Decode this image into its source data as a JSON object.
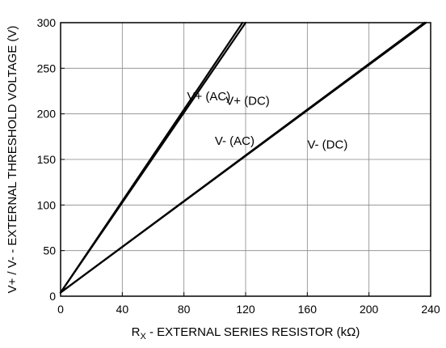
{
  "chart_data": {
    "type": "line",
    "xlabel": {
      "main": "R",
      "sub": "X",
      "rest": " - EXTERNAL SERIES RESISTOR (kΩ)"
    },
    "ylabel": "V+ / V- - EXTERNAL THRESHOLD VOLTAGE (V)",
    "xlim": [
      0,
      240
    ],
    "ylim": [
      0,
      300
    ],
    "xticks": [
      0,
      40,
      80,
      120,
      160,
      200,
      240
    ],
    "yticks": [
      0,
      50,
      100,
      150,
      200,
      250,
      300
    ],
    "grid": true,
    "series": [
      {
        "name": "V+ (AC)",
        "x": [
          0,
          118
        ],
        "y": [
          4,
          300
        ]
      },
      {
        "name": "V+ (DC)",
        "x": [
          0,
          120
        ],
        "y": [
          4,
          300
        ]
      },
      {
        "name": "V- (AC)",
        "x": [
          0,
          236
        ],
        "y": [
          4,
          300
        ]
      },
      {
        "name": "V- (DC)",
        "x": [
          0,
          237
        ],
        "y": [
          4,
          300
        ]
      }
    ],
    "annotations": [
      {
        "text": "V+ (AC)",
        "x": 82,
        "y": 215
      },
      {
        "text": "V+ (DC)",
        "x": 107,
        "y": 210
      },
      {
        "text": "V- (AC)",
        "x": 100,
        "y": 166
      },
      {
        "text": "V- (DC)",
        "x": 160,
        "y": 162
      }
    ],
    "colors": {
      "line": "#000000",
      "grid": "#888888",
      "frame": "#000000"
    }
  }
}
